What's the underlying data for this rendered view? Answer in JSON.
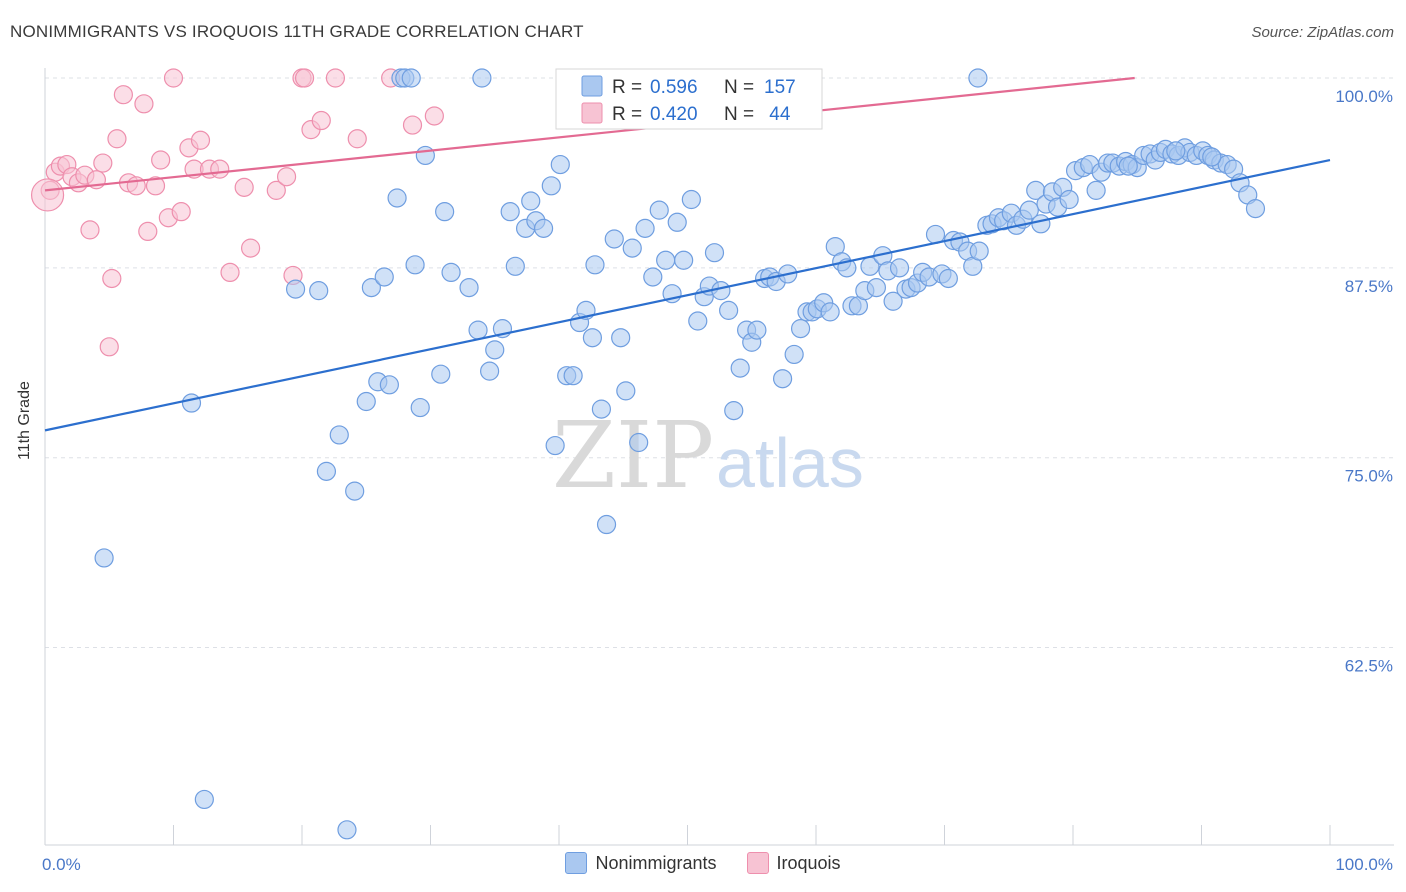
{
  "header": {
    "title": "NONIMMIGRANTS VS IROQUOIS 11TH GRADE CORRELATION CHART",
    "source": "Source: ZipAtlas.com"
  },
  "watermark": {
    "zip": "ZIP",
    "atlas": "atlas"
  },
  "colors": {
    "blue": "#6f9ee0",
    "blue_fill": "#aac8f0",
    "blue_line": "#2c6fce",
    "pink": "#ee8fad",
    "pink_fill": "#f7c3d3",
    "pink_line": "#e36a92",
    "grid": "#dde0e6",
    "tick_label": "#4a78c8"
  },
  "legend_top": {
    "rows": [
      {
        "r_label": "R = ",
        "r_value": "0.596",
        "n_label": "N = ",
        "n_value": "157"
      },
      {
        "r_label": "R = ",
        "r_value": "0.420",
        "n_label": "N = ",
        "n_value": " 44"
      }
    ]
  },
  "legend_bottom": {
    "items": [
      "Nonimmigrants",
      "Iroquois"
    ]
  },
  "chart_data": {
    "type": "scatter",
    "title": "NONIMMIGRANTS VS IROQUOIS 11TH GRADE CORRELATION CHART",
    "xlabel": "",
    "ylabel": "11th Grade",
    "xlim": [
      0,
      100
    ],
    "ylim": [
      49.5,
      100
    ],
    "x_tick_labels": [
      "0.0%",
      "100.0%"
    ],
    "y_ticks": [
      62.5,
      75.0,
      87.5,
      100.0
    ],
    "y_tick_labels": [
      "62.5%",
      "75.0%",
      "87.5%",
      "100.0%"
    ],
    "grid": true,
    "legend_placement": "bottom",
    "series": [
      {
        "name": "Nonimmigrants",
        "color": "#6f9ee0",
        "R": 0.596,
        "N": 157,
        "trend": [
          [
            0,
            76.8
          ],
          [
            100,
            94.6
          ]
        ],
        "points": [
          [
            4.6,
            68.4
          ],
          [
            11.4,
            78.6
          ],
          [
            12.4,
            52.5
          ],
          [
            19.5,
            86.1
          ],
          [
            21.3,
            86.0
          ],
          [
            21.9,
            74.1
          ],
          [
            22.9,
            76.5
          ],
          [
            23.5,
            50.5
          ],
          [
            24.1,
            72.8
          ],
          [
            25.0,
            78.7
          ],
          [
            25.4,
            86.2
          ],
          [
            25.9,
            80.0
          ],
          [
            26.4,
            86.9
          ],
          [
            26.8,
            79.8
          ],
          [
            27.4,
            92.1
          ],
          [
            27.7,
            100.0
          ],
          [
            28.0,
            100.0
          ],
          [
            28.5,
            100.0
          ],
          [
            28.8,
            87.7
          ],
          [
            29.2,
            78.3
          ],
          [
            29.6,
            94.9
          ],
          [
            30.8,
            80.5
          ],
          [
            31.1,
            91.2
          ],
          [
            31.6,
            87.2
          ],
          [
            33.0,
            86.2
          ],
          [
            33.7,
            83.4
          ],
          [
            34.0,
            100.0
          ],
          [
            34.6,
            80.7
          ],
          [
            35.0,
            82.1
          ],
          [
            35.6,
            83.5
          ],
          [
            36.2,
            91.2
          ],
          [
            36.6,
            87.6
          ],
          [
            37.4,
            90.1
          ],
          [
            37.8,
            91.9
          ],
          [
            38.2,
            90.6
          ],
          [
            38.8,
            90.1
          ],
          [
            39.4,
            92.9
          ],
          [
            39.7,
            75.8
          ],
          [
            40.1,
            94.3
          ],
          [
            40.6,
            80.4
          ],
          [
            41.1,
            80.4
          ],
          [
            41.6,
            83.9
          ],
          [
            42.1,
            84.7
          ],
          [
            42.6,
            82.9
          ],
          [
            42.8,
            87.7
          ],
          [
            43.3,
            78.2
          ],
          [
            43.7,
            70.6
          ],
          [
            44.3,
            89.4
          ],
          [
            44.8,
            82.9
          ],
          [
            45.2,
            79.4
          ],
          [
            45.7,
            88.8
          ],
          [
            46.2,
            76.0
          ],
          [
            46.7,
            90.1
          ],
          [
            47.3,
            86.9
          ],
          [
            47.8,
            91.3
          ],
          [
            48.3,
            88.0
          ],
          [
            48.8,
            85.8
          ],
          [
            49.2,
            90.5
          ],
          [
            49.7,
            88.0
          ],
          [
            50.3,
            92.0
          ],
          [
            50.8,
            84.0
          ],
          [
            51.3,
            85.6
          ],
          [
            51.7,
            86.3
          ],
          [
            52.1,
            88.5
          ],
          [
            52.6,
            86.0
          ],
          [
            53.2,
            84.7
          ],
          [
            53.6,
            78.1
          ],
          [
            54.1,
            80.9
          ],
          [
            54.6,
            83.4
          ],
          [
            55.0,
            82.6
          ],
          [
            55.4,
            83.4
          ],
          [
            56.0,
            86.8
          ],
          [
            56.4,
            86.9
          ],
          [
            56.9,
            86.6
          ],
          [
            57.4,
            80.2
          ],
          [
            57.8,
            87.1
          ],
          [
            58.3,
            81.8
          ],
          [
            58.8,
            83.5
          ],
          [
            59.3,
            84.6
          ],
          [
            59.7,
            84.6
          ],
          [
            60.1,
            84.8
          ],
          [
            60.6,
            85.2
          ],
          [
            61.1,
            84.6
          ],
          [
            61.5,
            88.9
          ],
          [
            62.0,
            87.9
          ],
          [
            62.4,
            87.5
          ],
          [
            62.8,
            85.0
          ],
          [
            63.3,
            85.0
          ],
          [
            63.8,
            86.0
          ],
          [
            64.2,
            87.6
          ],
          [
            64.7,
            86.2
          ],
          [
            65.2,
            88.3
          ],
          [
            65.6,
            87.3
          ],
          [
            66.0,
            85.3
          ],
          [
            66.5,
            87.5
          ],
          [
            67.0,
            86.1
          ],
          [
            67.4,
            86.2
          ],
          [
            67.9,
            86.5
          ],
          [
            68.3,
            87.2
          ],
          [
            68.8,
            86.9
          ],
          [
            69.3,
            89.7
          ],
          [
            69.8,
            87.1
          ],
          [
            70.3,
            86.8
          ],
          [
            70.7,
            89.3
          ],
          [
            71.2,
            89.2
          ],
          [
            71.8,
            88.6
          ],
          [
            72.2,
            87.6
          ],
          [
            72.7,
            88.6
          ],
          [
            73.3,
            90.3
          ],
          [
            73.7,
            90.4
          ],
          [
            74.2,
            90.8
          ],
          [
            74.6,
            90.6
          ],
          [
            75.2,
            91.1
          ],
          [
            75.6,
            90.3
          ],
          [
            76.1,
            90.7
          ],
          [
            76.6,
            91.3
          ],
          [
            77.1,
            92.6
          ],
          [
            77.5,
            90.4
          ],
          [
            77.9,
            91.7
          ],
          [
            78.4,
            92.5
          ],
          [
            78.8,
            91.5
          ],
          [
            79.2,
            92.8
          ],
          [
            79.7,
            92.0
          ],
          [
            80.2,
            93.9
          ],
          [
            80.8,
            94.1
          ],
          [
            81.3,
            94.3
          ],
          [
            81.8,
            92.6
          ],
          [
            82.2,
            93.8
          ],
          [
            82.7,
            94.4
          ],
          [
            83.1,
            94.4
          ],
          [
            83.6,
            94.2
          ],
          [
            84.1,
            94.5
          ],
          [
            84.6,
            94.3
          ],
          [
            85.0,
            94.1
          ],
          [
            85.5,
            94.9
          ],
          [
            86.0,
            95.0
          ],
          [
            86.4,
            94.6
          ],
          [
            86.8,
            95.1
          ],
          [
            87.2,
            95.3
          ],
          [
            87.7,
            95.0
          ],
          [
            88.2,
            94.9
          ],
          [
            88.7,
            95.4
          ],
          [
            89.1,
            95.1
          ],
          [
            89.6,
            94.9
          ],
          [
            90.1,
            95.2
          ],
          [
            90.5,
            94.9
          ],
          [
            91.0,
            94.6
          ],
          [
            91.5,
            94.4
          ],
          [
            92.0,
            94.3
          ],
          [
            92.5,
            94.0
          ],
          [
            93.0,
            93.1
          ],
          [
            93.6,
            92.3
          ],
          [
            94.2,
            91.4
          ],
          [
            72.6,
            100.0
          ],
          [
            84.3,
            94.2
          ],
          [
            88.0,
            95.2
          ],
          [
            90.8,
            94.8
          ]
        ]
      },
      {
        "name": "Iroquois",
        "color": "#ee8fad",
        "R": 0.42,
        "N": 44,
        "trend": [
          [
            0,
            92.6
          ],
          [
            84.8,
            100.0
          ]
        ],
        "points": [
          [
            0.4,
            92.6
          ],
          [
            0.8,
            93.8
          ],
          [
            1.2,
            94.2
          ],
          [
            1.7,
            94.3
          ],
          [
            2.1,
            93.5
          ],
          [
            2.6,
            93.1
          ],
          [
            3.1,
            93.6
          ],
          [
            3.5,
            90.0
          ],
          [
            4.0,
            93.3
          ],
          [
            4.5,
            94.4
          ],
          [
            5.2,
            86.8
          ],
          [
            5.6,
            96.0
          ],
          [
            6.1,
            98.9
          ],
          [
            6.5,
            93.1
          ],
          [
            7.1,
            92.9
          ],
          [
            7.7,
            98.3
          ],
          [
            8.0,
            89.9
          ],
          [
            8.6,
            92.9
          ],
          [
            9.0,
            94.6
          ],
          [
            9.6,
            90.8
          ],
          [
            10.0,
            100.0
          ],
          [
            10.6,
            91.2
          ],
          [
            11.2,
            95.4
          ],
          [
            11.6,
            94.0
          ],
          [
            12.1,
            95.9
          ],
          [
            12.8,
            94.0
          ],
          [
            13.6,
            94.0
          ],
          [
            14.4,
            87.2
          ],
          [
            15.5,
            92.8
          ],
          [
            16.0,
            88.8
          ],
          [
            18.0,
            92.6
          ],
          [
            18.8,
            93.5
          ],
          [
            19.3,
            87.0
          ],
          [
            20.0,
            100.0
          ],
          [
            20.7,
            96.6
          ],
          [
            21.5,
            97.2
          ],
          [
            22.6,
            100.0
          ],
          [
            24.3,
            96.0
          ],
          [
            26.9,
            100.0
          ],
          [
            28.6,
            96.9
          ],
          [
            30.3,
            97.5
          ],
          [
            5.0,
            82.3
          ],
          [
            20.2,
            100.0
          ],
          [
            0.2,
            92.3
          ]
        ]
      }
    ]
  }
}
